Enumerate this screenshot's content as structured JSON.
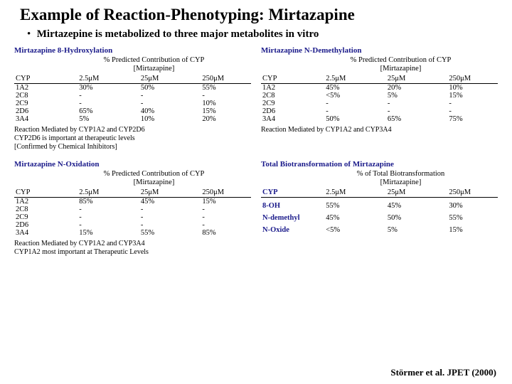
{
  "title": "Example of Reaction-Phenotyping: Mirtazapine",
  "bullet": "Mirtazepine is metabolized to three major metabolites in vitro",
  "citation": "Störmer et al. JPET (2000)",
  "headers": {
    "predicted": "% Predicted Contribution of CYP",
    "mirt": "[Mirtazapine]",
    "total": "% of Total Biotransformation",
    "cyp": "CYP",
    "c1": "2.5μM",
    "c2": "25μM",
    "c3": "250μM"
  },
  "p1": {
    "title": "Mirtazapine 8-Hydroxylation",
    "rows": [
      {
        "c": "1A2",
        "v1": "30%",
        "v2": "50%",
        "v3": "55%"
      },
      {
        "c": "2C8",
        "v1": "-",
        "v2": "-",
        "v3": "-"
      },
      {
        "c": "2C9",
        "v1": "-",
        "v2": "-",
        "v3": "10%"
      },
      {
        "c": "2D6",
        "v1": "65%",
        "v2": "40%",
        "v3": "15%"
      },
      {
        "c": "3A4",
        "v1": "5%",
        "v2": "10%",
        "v3": "20%"
      }
    ],
    "cap1": "Reaction Mediated by CYP1A2 and CYP2D6",
    "cap2": "CYP2D6 is important at therapeutic levels",
    "cap3": "[Confirmed by Chemical Inhibitors]"
  },
  "p2": {
    "title": "Mirtazapine N-Demethylation",
    "rows": [
      {
        "c": "1A2",
        "v1": "45%",
        "v2": "20%",
        "v3": "10%"
      },
      {
        "c": "2C8",
        "v1": "<5%",
        "v2": "5%",
        "v3": "15%"
      },
      {
        "c": "2C9",
        "v1": "-",
        "v2": "-",
        "v3": "-"
      },
      {
        "c": "2D6",
        "v1": "-",
        "v2": "-",
        "v3": "-"
      },
      {
        "c": "3A4",
        "v1": "50%",
        "v2": "65%",
        "v3": "75%"
      }
    ],
    "cap1": "Reaction Mediated by CYP1A2 and CYP3A4"
  },
  "p3": {
    "title": "Mirtazapine N-Oxidation",
    "rows": [
      {
        "c": "1A2",
        "v1": "85%",
        "v2": "45%",
        "v3": "15%"
      },
      {
        "c": "2C8",
        "v1": "-",
        "v2": "-",
        "v3": "-"
      },
      {
        "c": "2C9",
        "v1": "-",
        "v2": "-",
        "v3": "-"
      },
      {
        "c": "2D6",
        "v1": "-",
        "v2": "-",
        "v3": "-"
      },
      {
        "c": "3A4",
        "v1": "15%",
        "v2": "55%",
        "v3": "85%"
      }
    ],
    "cap1": "Reaction Mediated by CYP1A2 and CYP3A4",
    "cap2": "CYP1A2 most important at Therapeutic Levels"
  },
  "p4": {
    "title": "Total Biotransformation of Mirtazapine",
    "rows": [
      {
        "c": "8-OH",
        "v1": "55%",
        "v2": "45%",
        "v3": "30%"
      },
      {
        "c": "N-demethyl",
        "v1": "45%",
        "v2": "50%",
        "v3": "55%"
      },
      {
        "c": "N-Oxide",
        "v1": "<5%",
        "v2": "5%",
        "v3": "15%"
      }
    ]
  }
}
